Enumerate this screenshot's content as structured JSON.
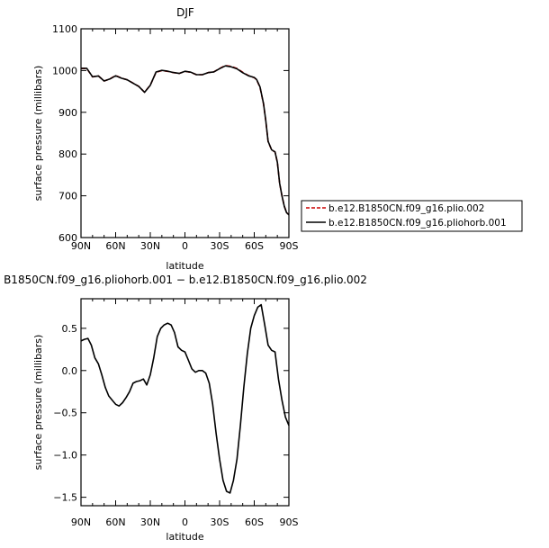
{
  "chart_data": [
    {
      "type": "line",
      "title": "DJF",
      "xlabel": "latitude",
      "ylabel": "surface pressure (millibars)",
      "xlim": [
        90,
        -90
      ],
      "ylim": [
        600,
        1100
      ],
      "xticks": [
        {
          "value": 90,
          "label": "90N"
        },
        {
          "value": 60,
          "label": "60N"
        },
        {
          "value": 30,
          "label": "30N"
        },
        {
          "value": 0,
          "label": "0"
        },
        {
          "value": -30,
          "label": "30S"
        },
        {
          "value": -60,
          "label": "60S"
        },
        {
          "value": -90,
          "label": "90S"
        }
      ],
      "yticks": [
        {
          "value": 600,
          "label": "600"
        },
        {
          "value": 700,
          "label": "700"
        },
        {
          "value": 800,
          "label": "800"
        },
        {
          "value": 900,
          "label": "900"
        },
        {
          "value": 1000,
          "label": "1000"
        },
        {
          "value": 1100,
          "label": "1100"
        }
      ],
      "legend_position": "right",
      "series": [
        {
          "name": "b.e12.B1850CN.f09_g16.plio.002",
          "color": "#cc0000",
          "dash": "dashed",
          "x": [
            90,
            85,
            80,
            75,
            70,
            65,
            60,
            55,
            50,
            45,
            40,
            35,
            30,
            25,
            20,
            15,
            10,
            5,
            0,
            -5,
            -10,
            -15,
            -20,
            -25,
            -30,
            -35,
            -40,
            -45,
            -50,
            -55,
            -60,
            -62,
            -65,
            -68,
            -70,
            -72,
            -75,
            -78,
            -80,
            -82,
            -84,
            -86,
            -88,
            -90
          ],
          "y": [
            1005,
            1005,
            985,
            987,
            975,
            980,
            988,
            982,
            978,
            970,
            962,
            948,
            965,
            996,
            1000,
            998,
            995,
            993,
            998,
            996,
            990,
            990,
            995,
            997,
            1005,
            1012,
            1010,
            1005,
            996,
            988,
            983,
            978,
            960,
            920,
            880,
            830,
            810,
            805,
            780,
            730,
            700,
            675,
            660,
            655
          ]
        },
        {
          "name": "b.e12.B1850CN.f09_g16.pliohorb.001",
          "color": "#000000",
          "dash": "solid",
          "x": [
            90,
            85,
            80,
            75,
            70,
            65,
            60,
            55,
            50,
            45,
            40,
            35,
            30,
            25,
            20,
            15,
            10,
            5,
            0,
            -5,
            -10,
            -15,
            -20,
            -25,
            -30,
            -35,
            -40,
            -45,
            -50,
            -55,
            -60,
            -62,
            -65,
            -68,
            -70,
            -72,
            -75,
            -78,
            -80,
            -82,
            -84,
            -86,
            -88,
            -90
          ],
          "y": [
            1005.4,
            1005.4,
            985.2,
            987.1,
            975,
            979.7,
            987.6,
            981.7,
            977.9,
            969.9,
            961.9,
            947.8,
            964.9,
            996.5,
            1000.4,
            998.5,
            995.2,
            993.1,
            998.2,
            996.1,
            990,
            990,
            995,
            996.7,
            1004.5,
            1011.2,
            1009,
            1004,
            994.9,
            987.4,
            983.3,
            978.6,
            960.7,
            920.7,
            880.5,
            830.3,
            810.2,
            805.2,
            780.2,
            730.1,
            699.8,
            674.8,
            659.7,
            654.4
          ]
        }
      ]
    },
    {
      "type": "line",
      "title": "B1850CN.f09_g16.pliohorb.001 − b.e12.B1850CN.f09_g16.plio.002",
      "xlabel": "latitude",
      "ylabel": "surface pressure (millibars)",
      "xlim": [
        90,
        -90
      ],
      "ylim": [
        -1.6,
        0.85
      ],
      "xticks": [
        {
          "value": 90,
          "label": "90N"
        },
        {
          "value": 60,
          "label": "60N"
        },
        {
          "value": 30,
          "label": "30N"
        },
        {
          "value": 0,
          "label": "0"
        },
        {
          "value": -30,
          "label": "30S"
        },
        {
          "value": -60,
          "label": "60S"
        },
        {
          "value": -90,
          "label": "90S"
        }
      ],
      "yticks": [
        {
          "value": 0.5,
          "label": "0.5"
        },
        {
          "value": 0.0,
          "label": "0.0"
        },
        {
          "value": -0.5,
          "label": "−0.5"
        },
        {
          "value": -1.0,
          "label": "−1.0"
        },
        {
          "value": -1.5,
          "label": "−1.5"
        }
      ],
      "series": [
        {
          "color": "#000000",
          "dash": "solid",
          "x": [
            90,
            87,
            84,
            81,
            78,
            75,
            72,
            69,
            66,
            63,
            60,
            57,
            54,
            51,
            48,
            45,
            42,
            39,
            36,
            33,
            30,
            27,
            24,
            21,
            18,
            15,
            12,
            9,
            6,
            3,
            0,
            -3,
            -6,
            -9,
            -12,
            -15,
            -18,
            -21,
            -24,
            -27,
            -30,
            -33,
            -36,
            -39,
            -42,
            -45,
            -48,
            -51,
            -54,
            -57,
            -60,
            -63,
            -66,
            -69,
            -72,
            -75,
            -78,
            -81,
            -84,
            -87,
            -90
          ],
          "y": [
            0.35,
            0.37,
            0.38,
            0.3,
            0.15,
            0.08,
            -0.05,
            -0.2,
            -0.3,
            -0.35,
            -0.4,
            -0.42,
            -0.38,
            -0.32,
            -0.25,
            -0.15,
            -0.13,
            -0.12,
            -0.1,
            -0.17,
            -0.05,
            0.15,
            0.4,
            0.5,
            0.54,
            0.56,
            0.54,
            0.45,
            0.28,
            0.24,
            0.22,
            0.12,
            0.02,
            -0.02,
            0.0,
            0.0,
            -0.03,
            -0.15,
            -0.4,
            -0.75,
            -1.05,
            -1.3,
            -1.43,
            -1.45,
            -1.3,
            -1.05,
            -0.65,
            -0.2,
            0.2,
            0.5,
            0.65,
            0.75,
            0.78,
            0.55,
            0.3,
            0.24,
            0.22,
            -0.1,
            -0.35,
            -0.55,
            -0.65
          ]
        }
      ]
    }
  ]
}
